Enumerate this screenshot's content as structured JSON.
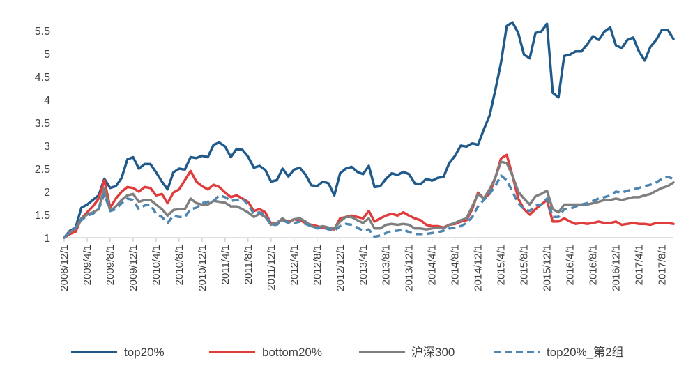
{
  "chart_data": {
    "type": "line",
    "title": "",
    "xlabel": "",
    "ylabel": "",
    "ylim": [
      1,
      5.5
    ],
    "y_ticks": [
      "1",
      "1.5",
      "2",
      "2.5",
      "3",
      "3.5",
      "4",
      "4.5",
      "5",
      "5.5"
    ],
    "x_tick_labels": [
      "2008/12/1",
      "2009/4/1",
      "2009/8/1",
      "2009/12/1",
      "2010/4/1",
      "2010/8/1",
      "2010/12/1",
      "2011/4/1",
      "2011/8/1",
      "2011/12/1",
      "2012/4/1",
      "2012/8/1",
      "2012/12/1",
      "2013/4/1",
      "2013/8/1",
      "2013/12/1",
      "2014/4/1",
      "2014/8/1",
      "2014/12/1",
      "2015/4/1",
      "2015/8/1",
      "2015/12/1",
      "2016/4/1",
      "2016/8/1",
      "2016/12/1",
      "2017/4/1",
      "2017/8/1"
    ],
    "legend_position": "bottom",
    "grid": false,
    "x": [
      "2008/12",
      "2009/1",
      "2009/2",
      "2009/3",
      "2009/4",
      "2009/5",
      "2009/6",
      "2009/7",
      "2009/8",
      "2009/9",
      "2009/10",
      "2009/11",
      "2009/12",
      "2010/1",
      "2010/2",
      "2010/3",
      "2010/4",
      "2010/5",
      "2010/6",
      "2010/7",
      "2010/8",
      "2010/9",
      "2010/10",
      "2010/11",
      "2010/12",
      "2011/1",
      "2011/2",
      "2011/3",
      "2011/4",
      "2011/5",
      "2011/6",
      "2011/7",
      "2011/8",
      "2011/9",
      "2011/10",
      "2011/11",
      "2011/12",
      "2012/1",
      "2012/2",
      "2012/3",
      "2012/4",
      "2012/5",
      "2012/6",
      "2012/7",
      "2012/8",
      "2012/9",
      "2012/10",
      "2012/11",
      "2012/12",
      "2013/1",
      "2013/2",
      "2013/3",
      "2013/4",
      "2013/5",
      "2013/6",
      "2013/7",
      "2013/8",
      "2013/9",
      "2013/10",
      "2013/11",
      "2013/12",
      "2014/1",
      "2014/2",
      "2014/3",
      "2014/4",
      "2014/5",
      "2014/6",
      "2014/7",
      "2014/8",
      "2014/9",
      "2014/10",
      "2014/11",
      "2014/12",
      "2015/1",
      "2015/2",
      "2015/3",
      "2015/4",
      "2015/5",
      "2015/6",
      "2015/7",
      "2015/8",
      "2015/9",
      "2015/10",
      "2015/11",
      "2015/12",
      "2016/1",
      "2016/2",
      "2016/3",
      "2016/4",
      "2016/5",
      "2016/6",
      "2016/7",
      "2016/8",
      "2016/9",
      "2016/10",
      "2016/11",
      "2016/12",
      "2017/1",
      "2017/2",
      "2017/3",
      "2017/4",
      "2017/5",
      "2017/6",
      "2017/7",
      "2017/8",
      "2017/9",
      "2017/10"
    ],
    "series": [
      {
        "name": "top20%",
        "color": "#1f5a8a",
        "dash": false,
        "values": [
          1.0,
          1.15,
          1.22,
          1.65,
          1.72,
          1.82,
          1.92,
          2.28,
          2.08,
          2.12,
          2.3,
          2.7,
          2.75,
          2.5,
          2.6,
          2.6,
          2.42,
          2.22,
          2.05,
          2.42,
          2.5,
          2.48,
          2.75,
          2.73,
          2.78,
          2.75,
          3.02,
          3.07,
          2.98,
          2.75,
          2.93,
          2.91,
          2.76,
          2.52,
          2.56,
          2.47,
          2.22,
          2.25,
          2.5,
          2.33,
          2.48,
          2.52,
          2.37,
          2.14,
          2.12,
          2.22,
          2.18,
          1.92,
          2.4,
          2.5,
          2.54,
          2.43,
          2.38,
          2.56,
          2.1,
          2.12,
          2.28,
          2.4,
          2.36,
          2.43,
          2.38,
          2.18,
          2.16,
          2.28,
          2.24,
          2.3,
          2.32,
          2.62,
          2.78,
          3.0,
          2.98,
          3.05,
          3.02,
          3.35,
          3.65,
          4.2,
          4.8,
          5.6,
          5.68,
          5.45,
          4.98,
          4.9,
          5.45,
          5.48,
          5.65,
          4.15,
          4.05,
          4.95,
          4.98,
          5.05,
          5.05,
          5.2,
          5.38,
          5.3,
          5.48,
          5.57,
          5.18,
          5.12,
          5.3,
          5.35,
          5.05,
          4.85,
          5.15,
          5.3,
          5.52,
          5.52,
          5.32
        ]
      },
      {
        "name": "bottom20%",
        "color": "#e03c3c",
        "dash": false,
        "values": [
          1.0,
          1.08,
          1.13,
          1.42,
          1.55,
          1.68,
          1.85,
          2.25,
          1.65,
          1.85,
          2.0,
          2.1,
          2.08,
          2.0,
          2.1,
          2.08,
          1.92,
          1.95,
          1.75,
          1.98,
          2.05,
          2.25,
          2.45,
          2.22,
          2.12,
          2.05,
          2.15,
          2.1,
          1.98,
          1.88,
          1.92,
          1.85,
          1.78,
          1.58,
          1.62,
          1.55,
          1.3,
          1.32,
          1.4,
          1.35,
          1.4,
          1.38,
          1.32,
          1.28,
          1.25,
          1.22,
          1.2,
          1.18,
          1.42,
          1.45,
          1.48,
          1.45,
          1.42,
          1.58,
          1.35,
          1.42,
          1.48,
          1.52,
          1.48,
          1.55,
          1.48,
          1.42,
          1.38,
          1.28,
          1.25,
          1.25,
          1.22,
          1.28,
          1.3,
          1.35,
          1.38,
          1.62,
          1.98,
          1.85,
          1.95,
          2.3,
          2.72,
          2.8,
          2.35,
          1.85,
          1.62,
          1.5,
          1.62,
          1.72,
          1.82,
          1.35,
          1.35,
          1.42,
          1.35,
          1.3,
          1.32,
          1.3,
          1.32,
          1.35,
          1.32,
          1.32,
          1.35,
          1.28,
          1.3,
          1.32,
          1.3,
          1.3,
          1.28,
          1.32,
          1.32,
          1.32,
          1.3
        ]
      },
      {
        "name": "沪深300",
        "color": "#7f7f7f",
        "dash": false,
        "values": [
          1.0,
          1.12,
          1.2,
          1.42,
          1.5,
          1.55,
          1.62,
          2.08,
          1.58,
          1.68,
          1.82,
          1.92,
          1.95,
          1.78,
          1.82,
          1.82,
          1.72,
          1.62,
          1.48,
          1.6,
          1.62,
          1.62,
          1.85,
          1.75,
          1.72,
          1.72,
          1.8,
          1.78,
          1.76,
          1.68,
          1.68,
          1.62,
          1.55,
          1.45,
          1.52,
          1.45,
          1.28,
          1.32,
          1.42,
          1.32,
          1.4,
          1.42,
          1.35,
          1.25,
          1.22,
          1.25,
          1.22,
          1.2,
          1.35,
          1.45,
          1.45,
          1.38,
          1.32,
          1.42,
          1.2,
          1.2,
          1.28,
          1.3,
          1.28,
          1.3,
          1.28,
          1.2,
          1.2,
          1.18,
          1.2,
          1.22,
          1.2,
          1.28,
          1.32,
          1.38,
          1.42,
          1.68,
          1.95,
          1.85,
          2.05,
          2.3,
          2.65,
          2.62,
          2.35,
          2.0,
          1.85,
          1.72,
          1.9,
          1.95,
          2.02,
          1.62,
          1.55,
          1.72,
          1.72,
          1.72,
          1.72,
          1.72,
          1.75,
          1.78,
          1.82,
          1.82,
          1.85,
          1.82,
          1.85,
          1.88,
          1.88,
          1.92,
          1.95,
          2.02,
          2.08,
          2.12,
          2.2
        ]
      },
      {
        "name": "top20%_第2组",
        "color": "#4f86b0",
        "dash": true,
        "values": [
          1.0,
          1.12,
          1.22,
          1.38,
          1.48,
          1.52,
          1.62,
          1.95,
          1.58,
          1.62,
          1.75,
          1.85,
          1.82,
          1.62,
          1.7,
          1.72,
          1.52,
          1.45,
          1.32,
          1.48,
          1.45,
          1.45,
          1.62,
          1.65,
          1.75,
          1.78,
          1.8,
          1.92,
          1.88,
          1.8,
          1.82,
          1.85,
          1.72,
          1.52,
          1.55,
          1.5,
          1.28,
          1.28,
          1.38,
          1.32,
          1.32,
          1.35,
          1.3,
          1.25,
          1.2,
          1.22,
          1.18,
          1.15,
          1.25,
          1.3,
          1.28,
          1.22,
          1.15,
          1.18,
          1.02,
          1.05,
          1.1,
          1.15,
          1.15,
          1.18,
          1.12,
          1.08,
          1.08,
          1.08,
          1.1,
          1.12,
          1.15,
          1.2,
          1.22,
          1.25,
          1.32,
          1.45,
          1.68,
          1.82,
          1.95,
          2.12,
          2.35,
          2.25,
          2.0,
          1.75,
          1.62,
          1.58,
          1.7,
          1.72,
          1.85,
          1.45,
          1.45,
          1.62,
          1.62,
          1.68,
          1.72,
          1.75,
          1.8,
          1.85,
          1.88,
          1.92,
          2.0,
          1.98,
          2.02,
          2.05,
          2.08,
          2.12,
          2.15,
          2.2,
          2.28,
          2.32,
          2.28
        ]
      }
    ]
  }
}
